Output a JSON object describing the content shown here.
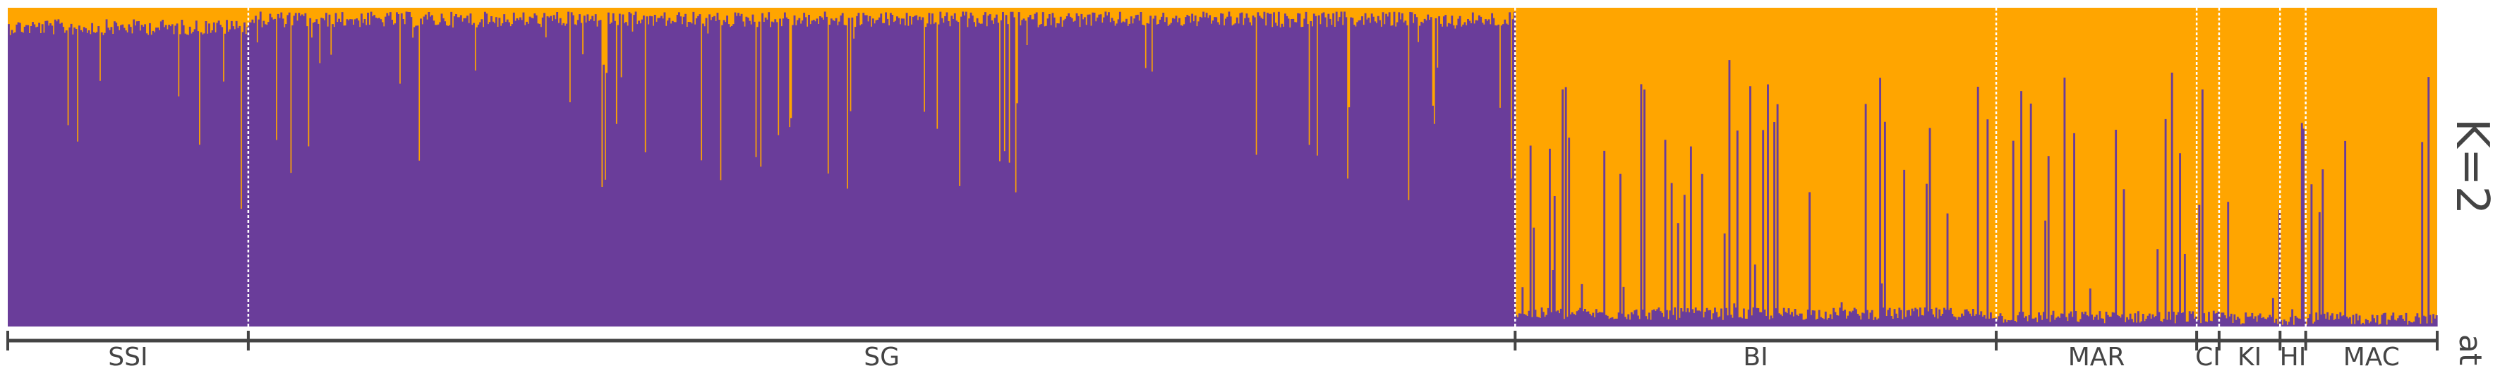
{
  "chart_data": {
    "type": "bar",
    "stacked": true,
    "k_label": "K=2",
    "trailing_label": "at",
    "colors": {
      "cluster_a": "#6a3d9a",
      "cluster_b": "#ffa500"
    },
    "y_range": [
      0,
      1
    ],
    "populations": [
      {
        "name": "SSI",
        "n": 150,
        "mean_cluster_a": 0.88
      },
      {
        "name": "SG",
        "n": 790,
        "mean_cluster_a": 0.96
      },
      {
        "name": "BI",
        "n": 300,
        "mean_cluster_a": 0.04
      },
      {
        "name": "MAR",
        "n": 125,
        "mean_cluster_a": 0.02
      },
      {
        "name": "CI",
        "n": 14,
        "mean_cluster_a": 0.02
      },
      {
        "name": "KI",
        "n": 38,
        "mean_cluster_a": 0.01
      },
      {
        "name": "HI",
        "n": 16,
        "mean_cluster_a": 0.01
      },
      {
        "name": "MAC",
        "n": 82,
        "mean_cluster_a": 0.01
      }
    ]
  }
}
